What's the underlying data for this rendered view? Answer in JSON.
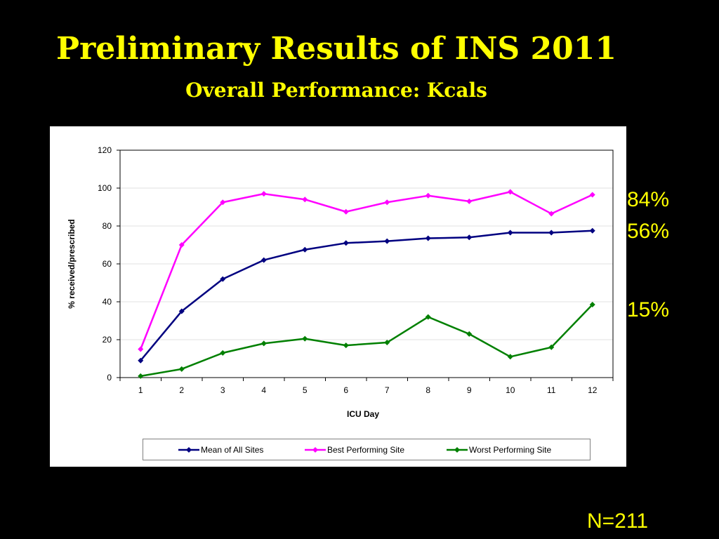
{
  "slide": {
    "title": "Preliminary Results of INS 2011",
    "subtitle": "Overall Performance: Kcals"
  },
  "annotations": {
    "best_pct": "84%",
    "mean_pct": "56%",
    "worst_pct": "15%",
    "sample_size": "N=211"
  },
  "colors": {
    "background": "#000000",
    "title_text": "#FFFF00",
    "chart_panel": "#FFFFFF"
  },
  "chart_data": {
    "type": "line",
    "title": "",
    "xlabel": "ICU Day",
    "ylabel": "% received/prescribed",
    "x": [
      1,
      2,
      3,
      4,
      5,
      6,
      7,
      8,
      9,
      10,
      11,
      12
    ],
    "ylim": [
      0,
      120
    ],
    "yticks": [
      0,
      20,
      40,
      60,
      80,
      100,
      120
    ],
    "grid": "horizontal",
    "legend_position": "bottom",
    "marker": "diamond",
    "series": [
      {
        "name": "Mean of All Sites",
        "color": "#000080",
        "values": [
          9,
          35,
          52,
          62,
          67.5,
          71,
          72,
          73.5,
          74,
          76.5,
          76.5,
          77.5
        ]
      },
      {
        "name": "Best Performing Site",
        "color": "#FF00FF",
        "values": [
          15,
          70,
          92.5,
          97,
          94,
          87.5,
          92.5,
          96,
          93,
          98,
          86.5,
          96.5
        ]
      },
      {
        "name": "Worst Performing Site",
        "color": "#008000",
        "values": [
          0.8,
          4.5,
          13,
          18,
          20.5,
          17,
          18.5,
          32,
          23,
          11,
          16,
          38.5
        ]
      }
    ]
  }
}
